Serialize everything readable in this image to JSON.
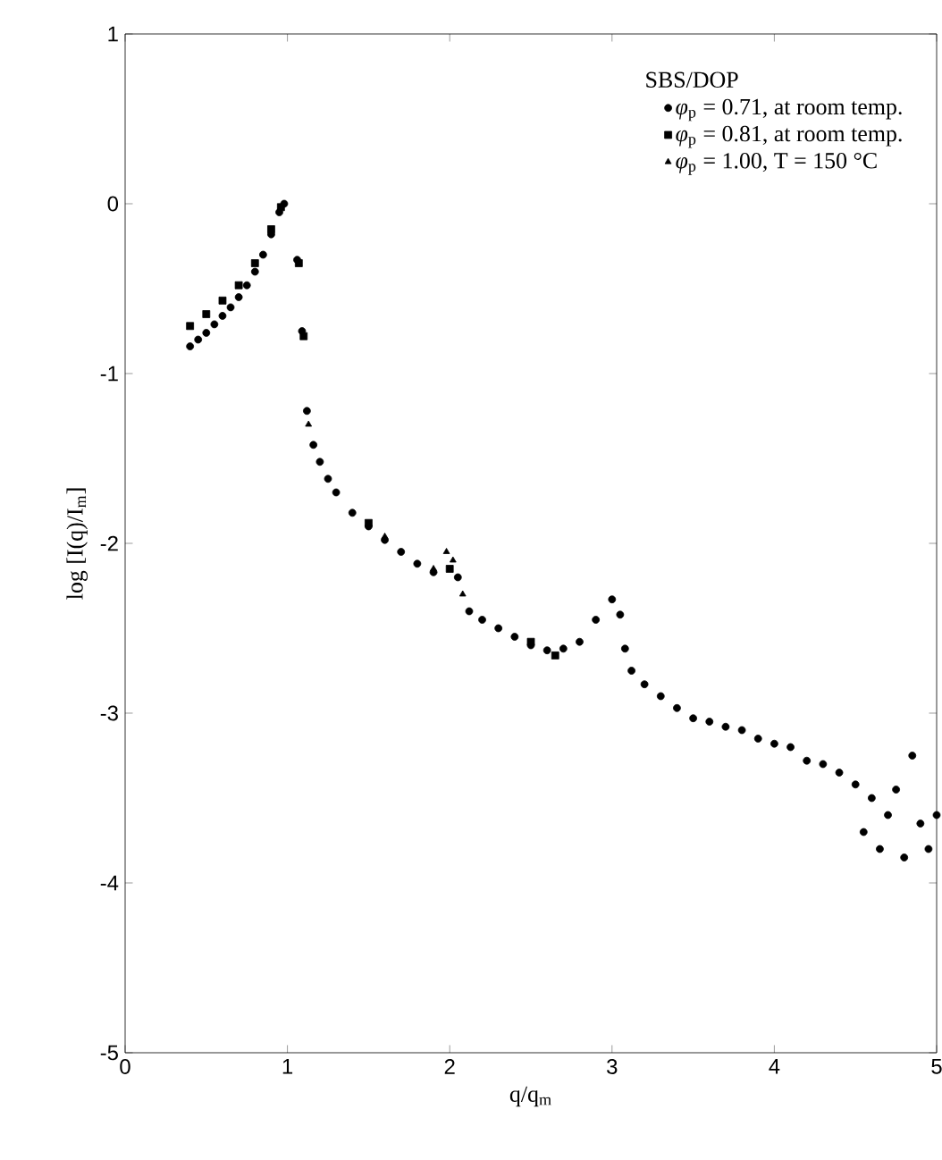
{
  "chart_data": {
    "type": "scatter",
    "xlabel": "q/q$_{m}$",
    "ylabel": "log [I(q)/I$_{m}$]",
    "legend_title": "SBS/DOP",
    "xlim": [
      0,
      5
    ],
    "ylim": [
      -5,
      1
    ],
    "xticks": [
      0,
      1,
      2,
      3,
      4,
      5
    ],
    "yticks": [
      1,
      0,
      -1,
      -2,
      -3,
      -4,
      -5
    ],
    "legend": "top right",
    "grid": false,
    "series": [
      {
        "name": "*φ*$_{p}$ = 0.71, at room temp.",
        "color": "#000000",
        "marker": "circle",
        "x": [
          0.4,
          0.45,
          0.5,
          0.55,
          0.6,
          0.65,
          0.7,
          0.75,
          0.8,
          0.85,
          0.9,
          0.95,
          0.98,
          1.06,
          1.09,
          1.12,
          1.16,
          1.2,
          1.25,
          1.3,
          1.4,
          1.5,
          1.6,
          1.7,
          1.8,
          1.9,
          2.05,
          2.12,
          2.2,
          2.3,
          2.4,
          2.5,
          2.6,
          2.7,
          2.8,
          2.9,
          3.0,
          3.05,
          3.08,
          3.12,
          3.2,
          3.3,
          3.4,
          3.5,
          3.6,
          3.7,
          3.8,
          3.9,
          4.0,
          4.1,
          4.2,
          4.3,
          4.4,
          4.5,
          4.55,
          4.6,
          4.65,
          4.7,
          4.75,
          4.8,
          4.85,
          4.9,
          4.95,
          5.0
        ],
        "values": [
          -0.84,
          -0.8,
          -0.76,
          -0.71,
          -0.66,
          -0.61,
          -0.55,
          -0.48,
          -0.4,
          -0.3,
          -0.18,
          -0.05,
          0.0,
          -0.33,
          -0.75,
          -1.22,
          -1.42,
          -1.52,
          -1.62,
          -1.7,
          -1.82,
          -1.9,
          -1.98,
          -2.05,
          -2.12,
          -2.17,
          -2.2,
          -2.4,
          -2.45,
          -2.5,
          -2.55,
          -2.6,
          -2.63,
          -2.62,
          -2.58,
          -2.45,
          -2.33,
          -2.42,
          -2.62,
          -2.75,
          -2.83,
          -2.9,
          -2.97,
          -3.03,
          -3.05,
          -3.08,
          -3.1,
          -3.15,
          -3.18,
          -3.2,
          -3.28,
          -3.3,
          -3.35,
          -3.42,
          -3.7,
          -3.5,
          -3.8,
          -3.6,
          -3.45,
          -3.85,
          -3.25,
          -3.65,
          -3.8,
          -3.6
        ]
      },
      {
        "name": "*φ*$_{p}$ = 0.81, at room temp.",
        "color": "#000000",
        "marker": "square",
        "x": [
          0.4,
          0.5,
          0.6,
          0.7,
          0.8,
          0.9,
          0.96,
          1.07,
          1.1,
          1.5,
          2.0,
          2.5,
          2.65
        ],
        "values": [
          -0.72,
          -0.65,
          -0.57,
          -0.48,
          -0.35,
          -0.15,
          -0.02,
          -0.35,
          -0.78,
          -1.88,
          -2.15,
          -2.58,
          -2.66
        ]
      },
      {
        "name": "*φ*$_{p}$ = 1.00, T = 150 °C",
        "color": "#000000",
        "marker": "triangle",
        "x": [
          1.13,
          1.6,
          1.9,
          1.98,
          2.02,
          2.08
        ],
        "values": [
          -1.3,
          -1.96,
          -2.15,
          -2.05,
          -2.1,
          -2.3
        ]
      }
    ]
  }
}
